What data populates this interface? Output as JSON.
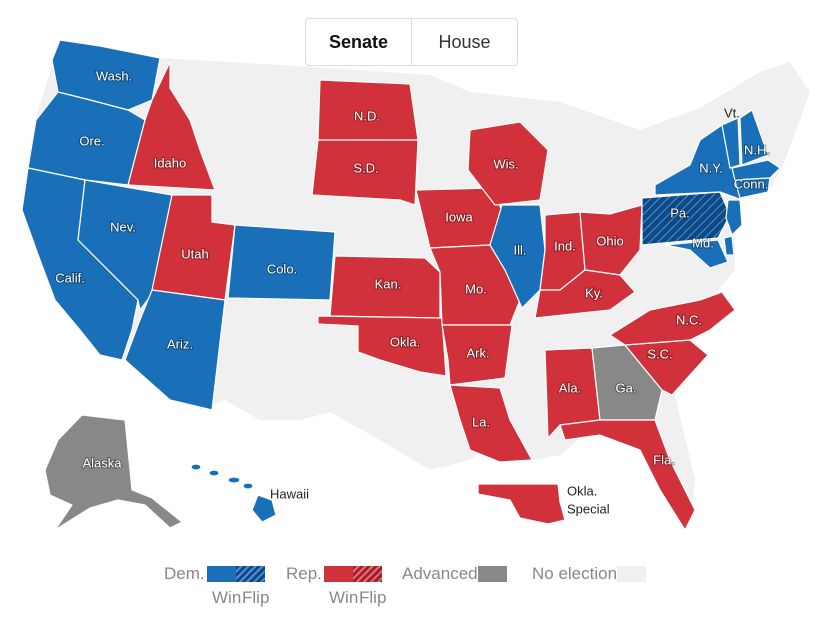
{
  "tabs": [
    {
      "label": "Senate",
      "active": true
    },
    {
      "label": "House",
      "active": false
    }
  ],
  "colors": {
    "dem": "#1a70b8",
    "dem_flip": "#0d4a85",
    "rep": "#d0313a",
    "rep_flip": "#a41f28",
    "advanced": "#888888",
    "no_election": "#f0f0f0"
  },
  "states": {
    "wash": "Wash.",
    "ore": "Ore.",
    "calif": "Calif.",
    "nev": "Nev.",
    "idaho": "Idaho",
    "utah": "Utah",
    "ariz": "Ariz.",
    "colo": "Colo.",
    "nd": "N.D.",
    "sd": "S.D.",
    "kan": "Kan.",
    "okla": "Okla.",
    "iowa": "Iowa",
    "mo": "Mo.",
    "ark": "Ark.",
    "la": "La.",
    "wis": "Wis.",
    "ill": "Ill.",
    "ind": "Ind.",
    "ohio": "Ohio",
    "ky": "Ky.",
    "ala": "Ala.",
    "ga": "Ga.",
    "fla": "Fla.",
    "sc": "S.C.",
    "nc": "N.C.",
    "pa": "Pa.",
    "md": "Md.",
    "ny": "N.Y.",
    "vt": "Vt.",
    "nh": "N.H.",
    "conn": "Conn.",
    "alaska": "Alaska",
    "hawaii": "Hawaii",
    "okla_special_1": "Okla.",
    "okla_special_2": "Special"
  },
  "legend": {
    "dem": "Dem.",
    "rep": "Rep.",
    "advanced": "Advanced",
    "no_election": "No election",
    "win": "Win",
    "flip": "Flip"
  }
}
